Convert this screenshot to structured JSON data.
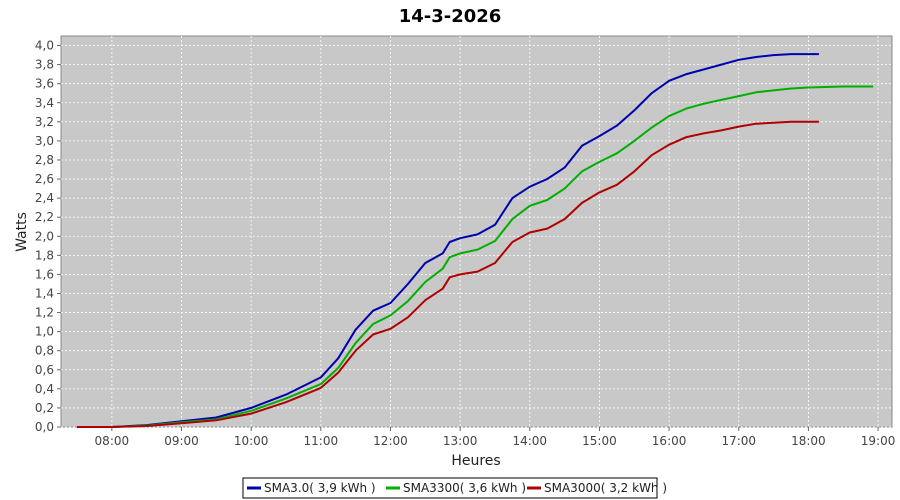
{
  "chart_data": {
    "type": "line",
    "title": "14-3-2026",
    "xlabel": "Heures",
    "ylabel": "Watts",
    "xlim": [
      7.27,
      19.2
    ],
    "ylim": [
      0,
      4.1
    ],
    "x_ticks": [
      {
        "value": 8,
        "label": "08:00"
      },
      {
        "value": 9,
        "label": "09:00"
      },
      {
        "value": 10,
        "label": "10:00"
      },
      {
        "value": 11,
        "label": "11:00"
      },
      {
        "value": 12,
        "label": "12:00"
      },
      {
        "value": 13,
        "label": "13:00"
      },
      {
        "value": 14,
        "label": "14:00"
      },
      {
        "value": 15,
        "label": "15:00"
      },
      {
        "value": 16,
        "label": "16:00"
      },
      {
        "value": 17,
        "label": "17:00"
      },
      {
        "value": 18,
        "label": "18:00"
      },
      {
        "value": 19,
        "label": "19:00"
      }
    ],
    "y_ticks": [
      {
        "value": 0.0,
        "label": "0,0"
      },
      {
        "value": 0.2,
        "label": "0,2"
      },
      {
        "value": 0.4,
        "label": "0,4"
      },
      {
        "value": 0.6,
        "label": "0,6"
      },
      {
        "value": 0.8,
        "label": "0,8"
      },
      {
        "value": 1.0,
        "label": "1,0"
      },
      {
        "value": 1.2,
        "label": "1,2"
      },
      {
        "value": 1.4,
        "label": "1,4"
      },
      {
        "value": 1.6,
        "label": "1,6"
      },
      {
        "value": 1.8,
        "label": "1,8"
      },
      {
        "value": 2.0,
        "label": "2,0"
      },
      {
        "value": 2.2,
        "label": "2,2"
      },
      {
        "value": 2.4,
        "label": "2,4"
      },
      {
        "value": 2.6,
        "label": "2,6"
      },
      {
        "value": 2.8,
        "label": "2,8"
      },
      {
        "value": 3.0,
        "label": "3,0"
      },
      {
        "value": 3.2,
        "label": "3,2"
      },
      {
        "value": 3.4,
        "label": "3,4"
      },
      {
        "value": 3.6,
        "label": "3,6"
      },
      {
        "value": 3.8,
        "label": "3,8"
      },
      {
        "value": 4.0,
        "label": "4,0"
      }
    ],
    "grid": true,
    "plot_background": "#c8c8c8",
    "legend_position": "bottom",
    "series": [
      {
        "name": "SMA3.0( 3,9 kWh )",
        "color": "#0000b0",
        "x": [
          7.5,
          8.0,
          8.5,
          9.0,
          9.5,
          10.0,
          10.5,
          11.0,
          11.25,
          11.5,
          11.75,
          12.0,
          12.25,
          12.5,
          12.75,
          12.85,
          13.0,
          13.25,
          13.5,
          13.75,
          14.0,
          14.25,
          14.5,
          14.75,
          15.0,
          15.25,
          15.5,
          15.75,
          16.0,
          16.25,
          16.5,
          16.75,
          17.0,
          17.25,
          17.5,
          17.75,
          18.0,
          18.15
        ],
        "y": [
          0.0,
          0.0,
          0.02,
          0.06,
          0.1,
          0.2,
          0.34,
          0.52,
          0.72,
          1.02,
          1.22,
          1.3,
          1.5,
          1.72,
          1.82,
          1.94,
          1.98,
          2.02,
          2.12,
          2.4,
          2.52,
          2.6,
          2.72,
          2.95,
          3.05,
          3.16,
          3.32,
          3.5,
          3.63,
          3.7,
          3.75,
          3.8,
          3.85,
          3.88,
          3.9,
          3.91,
          3.91,
          3.91
        ]
      },
      {
        "name": "SMA3300( 3,6 kWh )",
        "color": "#00b000",
        "x": [
          7.5,
          8.0,
          8.5,
          9.0,
          9.5,
          10.0,
          10.5,
          11.0,
          11.25,
          11.5,
          11.75,
          12.0,
          12.25,
          12.5,
          12.75,
          12.85,
          13.0,
          13.25,
          13.5,
          13.75,
          14.0,
          14.25,
          14.5,
          14.75,
          15.0,
          15.25,
          15.5,
          15.75,
          16.0,
          16.25,
          16.5,
          16.75,
          17.0,
          17.25,
          17.5,
          17.75,
          18.0,
          18.5,
          18.93
        ],
        "y": [
          0.0,
          0.0,
          0.015,
          0.05,
          0.08,
          0.17,
          0.3,
          0.45,
          0.62,
          0.88,
          1.08,
          1.17,
          1.32,
          1.52,
          1.66,
          1.78,
          1.82,
          1.86,
          1.95,
          2.18,
          2.32,
          2.38,
          2.5,
          2.68,
          2.78,
          2.87,
          3.0,
          3.14,
          3.26,
          3.34,
          3.39,
          3.43,
          3.47,
          3.51,
          3.53,
          3.55,
          3.56,
          3.57,
          3.57
        ]
      },
      {
        "name": "SMA3000( 3,2 kWh )",
        "color": "#b00000",
        "x": [
          7.5,
          8.0,
          8.5,
          9.0,
          9.5,
          10.0,
          10.5,
          11.0,
          11.25,
          11.5,
          11.75,
          12.0,
          12.25,
          12.5,
          12.75,
          12.85,
          13.0,
          13.25,
          13.5,
          13.75,
          14.0,
          14.25,
          14.5,
          14.75,
          15.0,
          15.25,
          15.5,
          15.75,
          16.0,
          16.25,
          16.5,
          16.75,
          17.0,
          17.25,
          17.5,
          17.75,
          18.0,
          18.15
        ],
        "y": [
          0.0,
          0.0,
          0.01,
          0.04,
          0.07,
          0.14,
          0.26,
          0.41,
          0.57,
          0.8,
          0.97,
          1.03,
          1.15,
          1.33,
          1.45,
          1.57,
          1.6,
          1.63,
          1.72,
          1.94,
          2.04,
          2.08,
          2.18,
          2.35,
          2.46,
          2.54,
          2.68,
          2.85,
          2.96,
          3.04,
          3.08,
          3.11,
          3.15,
          3.18,
          3.19,
          3.2,
          3.2,
          3.2
        ]
      }
    ]
  }
}
